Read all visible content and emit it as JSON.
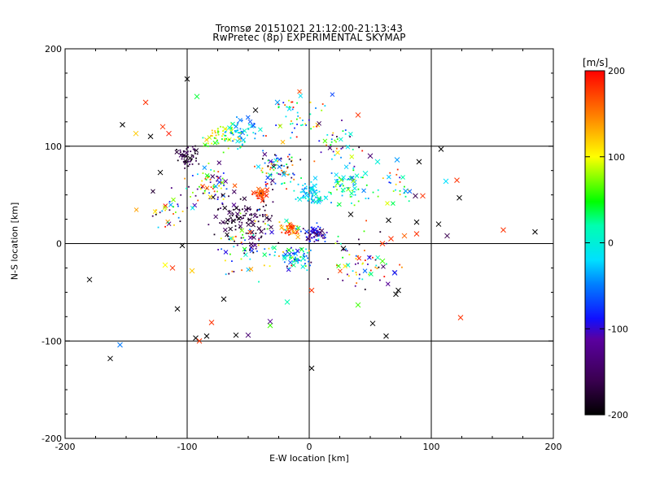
{
  "chart_data": {
    "type": "scatter",
    "title": "Tromsø 20151021 21:12:00-21:13:43",
    "subtitle": "RwPretec (8p) EXPERIMENTAL SKYMAP",
    "xlabel": "E-W location [km]",
    "ylabel": "N-S location [km]",
    "xlim": [
      -200,
      200
    ],
    "ylim": [
      -200,
      200
    ],
    "x_ticks": [
      "-200",
      "-100",
      "0",
      "100",
      "200"
    ],
    "y_ticks": [
      "-200",
      "-100",
      "0",
      "100",
      "200"
    ],
    "grid": true,
    "colorbar": {
      "label": "[m/s]",
      "range": [
        -200,
        200
      ],
      "ticks": [
        "-200",
        "-100",
        "0",
        "100",
        "200"
      ],
      "colormap": "rainbow (black-purple-blue-cyan-green-yellow-red)"
    },
    "points": [
      {
        "x": -180,
        "y": -37,
        "v": -200,
        "m": "x"
      },
      {
        "x": -163,
        "y": -118,
        "v": -200,
        "m": "x"
      },
      {
        "x": -155,
        "y": -104,
        "v": -50,
        "m": "x"
      },
      {
        "x": -153,
        "y": 122,
        "v": -200,
        "m": "x"
      },
      {
        "x": -142,
        "y": 113,
        "v": 120,
        "m": "x"
      },
      {
        "x": -134,
        "y": 145,
        "v": 180,
        "m": "x"
      },
      {
        "x": -130,
        "y": 110,
        "v": -200,
        "m": "x"
      },
      {
        "x": -120,
        "y": 120,
        "v": 180,
        "m": "x"
      },
      {
        "x": -115,
        "y": 113,
        "v": 190,
        "m": "x"
      },
      {
        "x": -122,
        "y": 73,
        "v": -200,
        "m": "x"
      },
      {
        "x": -118,
        "y": -22,
        "v": 100,
        "m": "x"
      },
      {
        "x": -112,
        "y": -25,
        "v": 180,
        "m": "x"
      },
      {
        "x": -108,
        "y": -67,
        "v": -200,
        "m": "x"
      },
      {
        "x": -104,
        "y": -2,
        "v": -200,
        "m": "x"
      },
      {
        "x": -100,
        "y": 169,
        "v": -200,
        "m": "x"
      },
      {
        "x": -96,
        "y": -28,
        "v": 120,
        "m": "x"
      },
      {
        "x": -93,
        "y": -97,
        "v": -200,
        "m": "x"
      },
      {
        "x": -92,
        "y": 151,
        "v": 40,
        "m": "x"
      },
      {
        "x": -90,
        "y": -100,
        "v": 180,
        "m": "x"
      },
      {
        "x": -84,
        "y": -95,
        "v": -200,
        "m": "x"
      },
      {
        "x": -80,
        "y": -81,
        "v": 180,
        "m": "x"
      },
      {
        "x": -70,
        "y": -57,
        "v": -200,
        "m": "x"
      },
      {
        "x": -60,
        "y": -94,
        "v": -200,
        "m": "x"
      },
      {
        "x": -50,
        "y": -94,
        "v": -140,
        "m": "x"
      },
      {
        "x": -44,
        "y": 137,
        "v": -200,
        "m": "x"
      },
      {
        "x": -32,
        "y": -84,
        "v": 60,
        "m": "x"
      },
      {
        "x": -26,
        "y": 145,
        "v": -40,
        "m": "x"
      },
      {
        "x": -18,
        "y": -60,
        "v": 20,
        "m": "x"
      },
      {
        "x": -32,
        "y": -80,
        "v": -120,
        "m": "x"
      },
      {
        "x": 2,
        "y": -128,
        "v": -200,
        "m": "x"
      },
      {
        "x": 2,
        "y": -48,
        "v": 180,
        "m": "x"
      },
      {
        "x": 40,
        "y": 132,
        "v": 180,
        "m": "x"
      },
      {
        "x": 40,
        "y": -63,
        "v": 60,
        "m": "x"
      },
      {
        "x": 50,
        "y": 90,
        "v": -140,
        "m": "x"
      },
      {
        "x": 56,
        "y": 84,
        "v": 0,
        "m": "x"
      },
      {
        "x": 52,
        "y": -82,
        "v": -200,
        "m": "x"
      },
      {
        "x": 63,
        "y": -95,
        "v": -200,
        "m": "x"
      },
      {
        "x": 72,
        "y": 86,
        "v": -40,
        "m": "x"
      },
      {
        "x": 70,
        "y": -30,
        "v": -80,
        "m": "x"
      },
      {
        "x": 73,
        "y": -48,
        "v": -200,
        "m": "x"
      },
      {
        "x": 71,
        "y": -52,
        "v": -200,
        "m": "x"
      },
      {
        "x": 79,
        "y": 54,
        "v": -40,
        "m": "x"
      },
      {
        "x": 87,
        "y": 49,
        "v": -160,
        "m": "x"
      },
      {
        "x": 90,
        "y": 84,
        "v": -200,
        "m": "x"
      },
      {
        "x": 93,
        "y": 49,
        "v": 180,
        "m": "x"
      },
      {
        "x": 106,
        "y": 20,
        "v": -200,
        "m": "x"
      },
      {
        "x": 108,
        "y": 97,
        "v": -200,
        "m": "x"
      },
      {
        "x": 112,
        "y": 64,
        "v": -20,
        "m": "x"
      },
      {
        "x": 113,
        "y": 8,
        "v": -160,
        "m": "x"
      },
      {
        "x": 121,
        "y": 65,
        "v": 180,
        "m": "x"
      },
      {
        "x": 123,
        "y": 47,
        "v": -200,
        "m": "x"
      },
      {
        "x": 124,
        "y": -76,
        "v": 180,
        "m": "x"
      },
      {
        "x": 159,
        "y": 14,
        "v": 180,
        "m": "x"
      },
      {
        "x": 185,
        "y": 12,
        "v": -200,
        "m": "x"
      },
      {
        "x": 60,
        "y": 0,
        "v": 180,
        "m": "x"
      },
      {
        "x": 67,
        "y": 5,
        "v": 180,
        "m": "x"
      },
      {
        "x": 78,
        "y": 8,
        "v": 160,
        "m": "x"
      },
      {
        "x": 88,
        "y": 10,
        "v": 180,
        "m": "x"
      },
      {
        "x": 34,
        "y": 30,
        "v": -200,
        "m": "x"
      },
      {
        "x": 28,
        "y": -5,
        "v": -200,
        "m": "x"
      },
      {
        "x": 65,
        "y": 24,
        "v": -200,
        "m": "x"
      },
      {
        "x": 88,
        "y": 22,
        "v": -200,
        "m": "x"
      },
      {
        "x": 46,
        "y": 72,
        "v": 0,
        "m": "x"
      },
      {
        "x": 60,
        "y": -18,
        "v": 60,
        "m": "x"
      }
    ],
    "clusters": [
      {
        "cx": -40,
        "cy": 50,
        "r": 6,
        "n": 45,
        "vmin": 150,
        "vmax": 200
      },
      {
        "cx": 0,
        "cy": 52,
        "r": 10,
        "n": 70,
        "vmin": -60,
        "vmax": 20
      },
      {
        "cx": 5,
        "cy": 10,
        "r": 10,
        "n": 70,
        "vmin": -160,
        "vmax": -60
      },
      {
        "cx": -15,
        "cy": 15,
        "r": 8,
        "n": 45,
        "vmin": 120,
        "vmax": 200
      },
      {
        "cx": -10,
        "cy": -15,
        "r": 12,
        "n": 55,
        "vmin": -100,
        "vmax": 80
      },
      {
        "cx": -55,
        "cy": 25,
        "r": 25,
        "n": 110,
        "vmin": -200,
        "vmax": -150
      },
      {
        "cx": -100,
        "cy": 90,
        "r": 10,
        "n": 55,
        "vmin": -200,
        "vmax": -140
      },
      {
        "cx": -70,
        "cy": 110,
        "r": 15,
        "n": 60,
        "vmin": 20,
        "vmax": 140
      },
      {
        "cx": -55,
        "cy": 115,
        "r": 15,
        "n": 55,
        "vmin": -70,
        "vmax": 20
      },
      {
        "cx": -25,
        "cy": 75,
        "r": 20,
        "n": 80,
        "vmin": -200,
        "vmax": 200
      },
      {
        "cx": 30,
        "cy": 60,
        "r": 20,
        "n": 70,
        "vmin": -60,
        "vmax": 80
      },
      {
        "cx": -80,
        "cy": 60,
        "r": 20,
        "n": 70,
        "vmin": -200,
        "vmax": 200
      },
      {
        "cx": -40,
        "cy": 0,
        "r": 35,
        "n": 90,
        "vmin": -200,
        "vmax": 200
      },
      {
        "cx": 40,
        "cy": -20,
        "r": 35,
        "n": 70,
        "vmin": -200,
        "vmax": 200
      },
      {
        "cx": -10,
        "cy": 130,
        "r": 25,
        "n": 50,
        "vmin": -100,
        "vmax": 200
      },
      {
        "cx": 20,
        "cy": 100,
        "r": 25,
        "n": 40,
        "vmin": -200,
        "vmax": 200
      },
      {
        "cx": -110,
        "cy": 40,
        "r": 25,
        "n": 40,
        "vmin": -200,
        "vmax": 200
      },
      {
        "cx": 70,
        "cy": 60,
        "r": 20,
        "n": 25,
        "vmin": -100,
        "vmax": 200
      }
    ]
  }
}
